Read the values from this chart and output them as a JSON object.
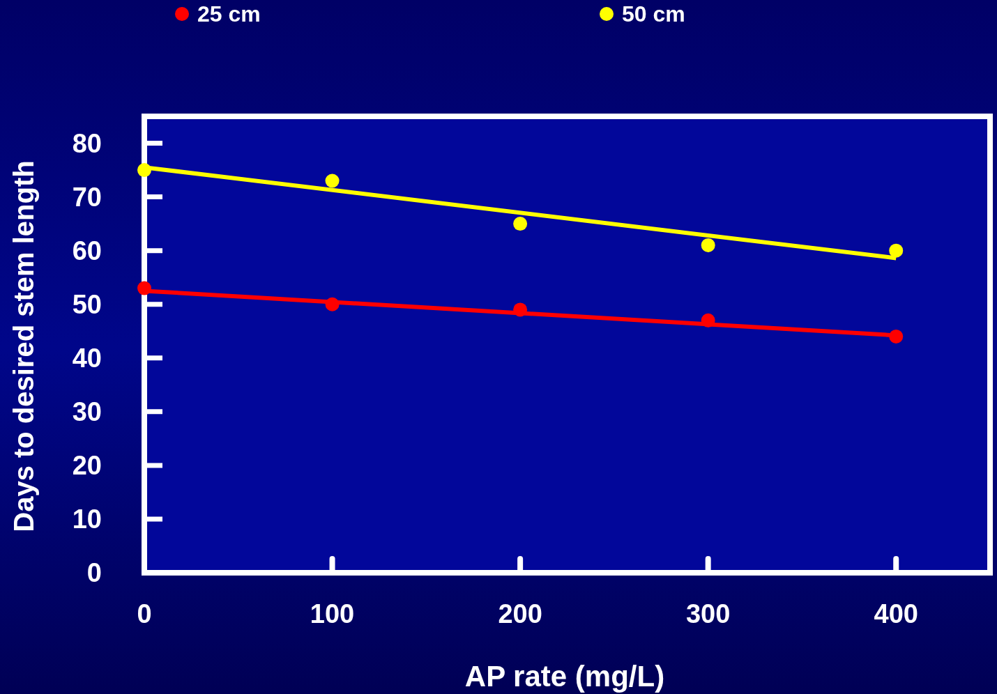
{
  "chart_data": {
    "type": "scatter",
    "xlabel": "AP rate (mg/L)",
    "ylabel": "Days to desired stem length",
    "xlim": [
      0,
      450
    ],
    "ylim": [
      0,
      85
    ],
    "xticks": [
      0,
      100,
      200,
      300,
      400
    ],
    "yticks": [
      0,
      10,
      20,
      30,
      40,
      50,
      60,
      70,
      80
    ],
    "grid": false,
    "legend": "top",
    "marker": "circle",
    "series": [
      {
        "name": "25 cm",
        "color": "#ff0000",
        "x": [
          0,
          100,
          200,
          300,
          400
        ],
        "values": [
          53,
          50,
          49,
          47,
          44
        ]
      },
      {
        "name": "50 cm",
        "color": "#ffff00",
        "x": [
          0,
          100,
          200,
          300,
          400
        ],
        "values": [
          75,
          73,
          65,
          61,
          60
        ]
      },
      {
        "type": "line",
        "color": "#ff0000",
        "marker": "none",
        "x": [
          0,
          400
        ],
        "values": [
          52.5,
          44.2
        ]
      },
      {
        "type": "line",
        "color": "#ffff00",
        "marker": "none",
        "x": [
          0,
          400
        ],
        "values": [
          75.5,
          58.6
        ]
      }
    ]
  }
}
